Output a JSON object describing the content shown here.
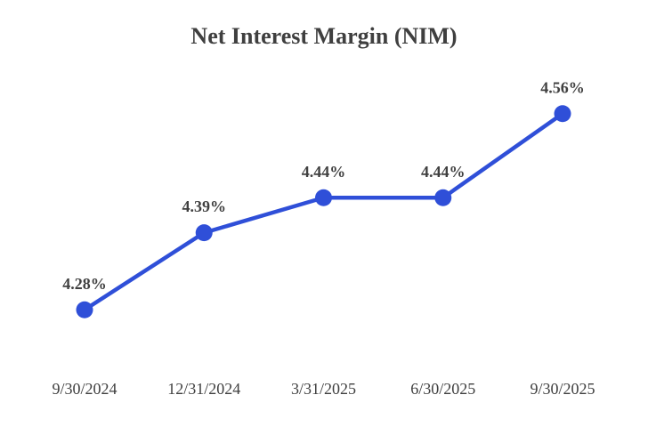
{
  "chart_data": {
    "type": "line",
    "title": "Net Interest Margin (NIM)",
    "categories": [
      "9/30/2024",
      "12/31/2024",
      "3/31/2025",
      "6/30/2025",
      "9/30/2025"
    ],
    "values": [
      4.28,
      4.39,
      4.44,
      4.44,
      4.56
    ],
    "point_labels": [
      "4.28%",
      "4.39%",
      "4.44%",
      "4.44%",
      "4.56%"
    ],
    "ylim": [
      4.26,
      4.58
    ],
    "xlabel": "",
    "ylabel": "",
    "grid": false,
    "legend": "none",
    "colors": {
      "line": "#2f4fd8",
      "marker": "#2f4fd8",
      "point_label": "#404040",
      "axis_label": "#3f3f3f",
      "title": "#3f3f3f",
      "background": "#ffffff"
    }
  }
}
